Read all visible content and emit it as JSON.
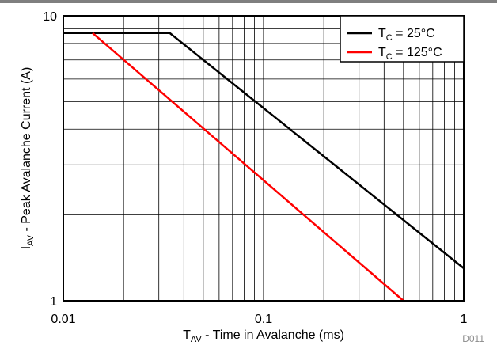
{
  "chart_data": {
    "type": "line",
    "x_scale": "log",
    "y_scale": "log",
    "xlim": [
      0.01,
      1
    ],
    "ylim": [
      1,
      10
    ],
    "grid": true,
    "legend_position": "top-right",
    "x_ticks": [
      {
        "value": 0.01,
        "label": "0.01"
      },
      {
        "value": 0.1,
        "label": "0.1"
      },
      {
        "value": 1,
        "label": "1"
      }
    ],
    "y_ticks": [
      {
        "value": 10,
        "label": "10"
      },
      {
        "value": 1,
        "label": "1"
      }
    ],
    "xlabel": {
      "main": "T",
      "sub": "AV",
      "rest": " - Time in Avalanche (ms)"
    },
    "ylabel": {
      "main": "I",
      "sub": "AV",
      "rest": " - Peak Avalanche Current (A)"
    },
    "series": [
      {
        "name": "T_C = 25°C",
        "legend": {
          "main": "T",
          "sub": "C",
          "rest": " = 25°C"
        },
        "color": "#000000",
        "points": [
          [
            0.01,
            8.7
          ],
          [
            0.034,
            8.7
          ],
          [
            1,
            1.3
          ]
        ]
      },
      {
        "name": "T_C = 125°C",
        "legend": {
          "main": "T",
          "sub": "C",
          "rest": " = 125°C"
        },
        "color": "#ff0000",
        "points": [
          [
            0.014,
            8.7
          ],
          [
            0.5,
            1.0
          ]
        ]
      }
    ],
    "figure_code": "D011"
  }
}
